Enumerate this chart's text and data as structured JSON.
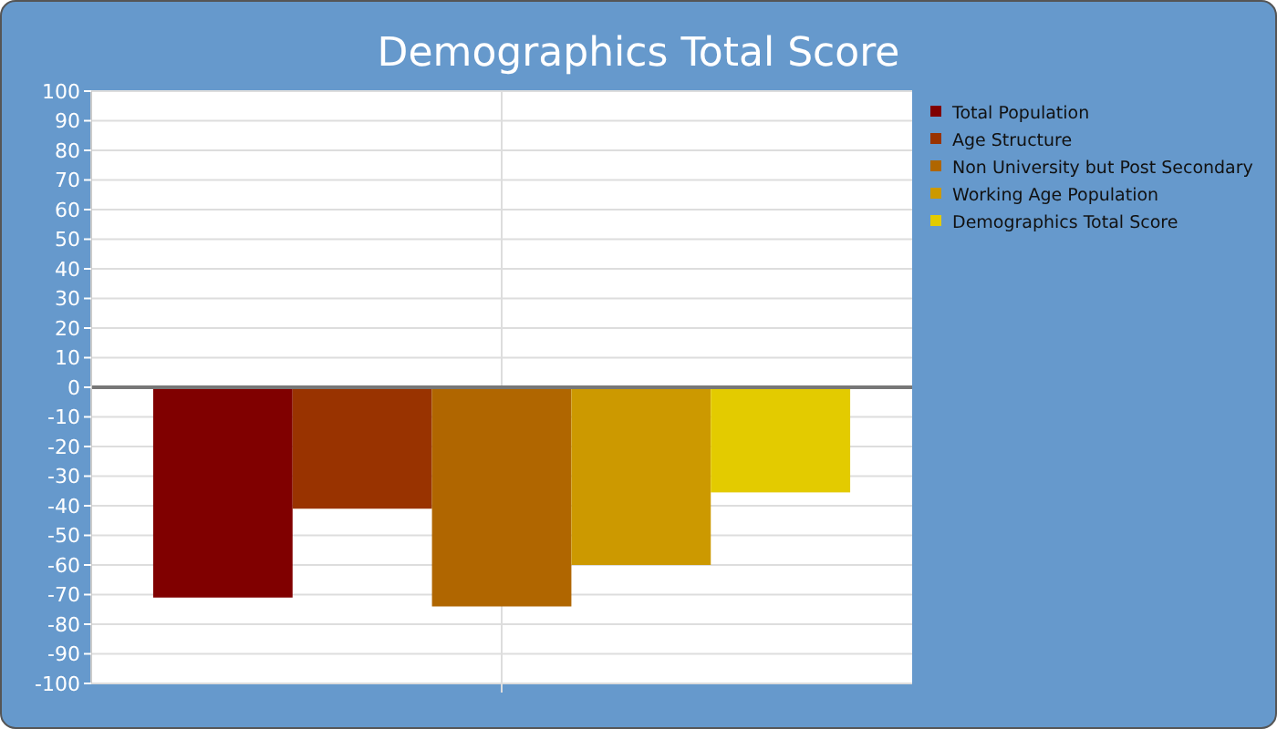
{
  "chart_data": {
    "type": "bar",
    "title": "Demographics Total Score",
    "categories": [
      null
    ],
    "series": [
      {
        "name": "Total Population",
        "color": "#800000",
        "values": [
          -71
        ]
      },
      {
        "name": "Age Structure",
        "color": "#993300",
        "values": [
          -41
        ]
      },
      {
        "name": "Non University but Post Secondary",
        "color": "#b06600",
        "values": [
          -74
        ]
      },
      {
        "name": "Working Age Population",
        "color": "#cc9900",
        "values": [
          -60
        ]
      },
      {
        "name": "Demographics Total Score",
        "color": "#e3cb00",
        "values": [
          -35.5
        ]
      }
    ],
    "ylim": [
      -100,
      100
    ],
    "yticks": [
      -100,
      -90,
      -80,
      -70,
      -60,
      -50,
      -40,
      -30,
      -20,
      -10,
      0,
      10,
      20,
      30,
      40,
      50,
      60,
      70,
      80,
      90,
      100
    ],
    "grid": true,
    "legend": "right"
  }
}
